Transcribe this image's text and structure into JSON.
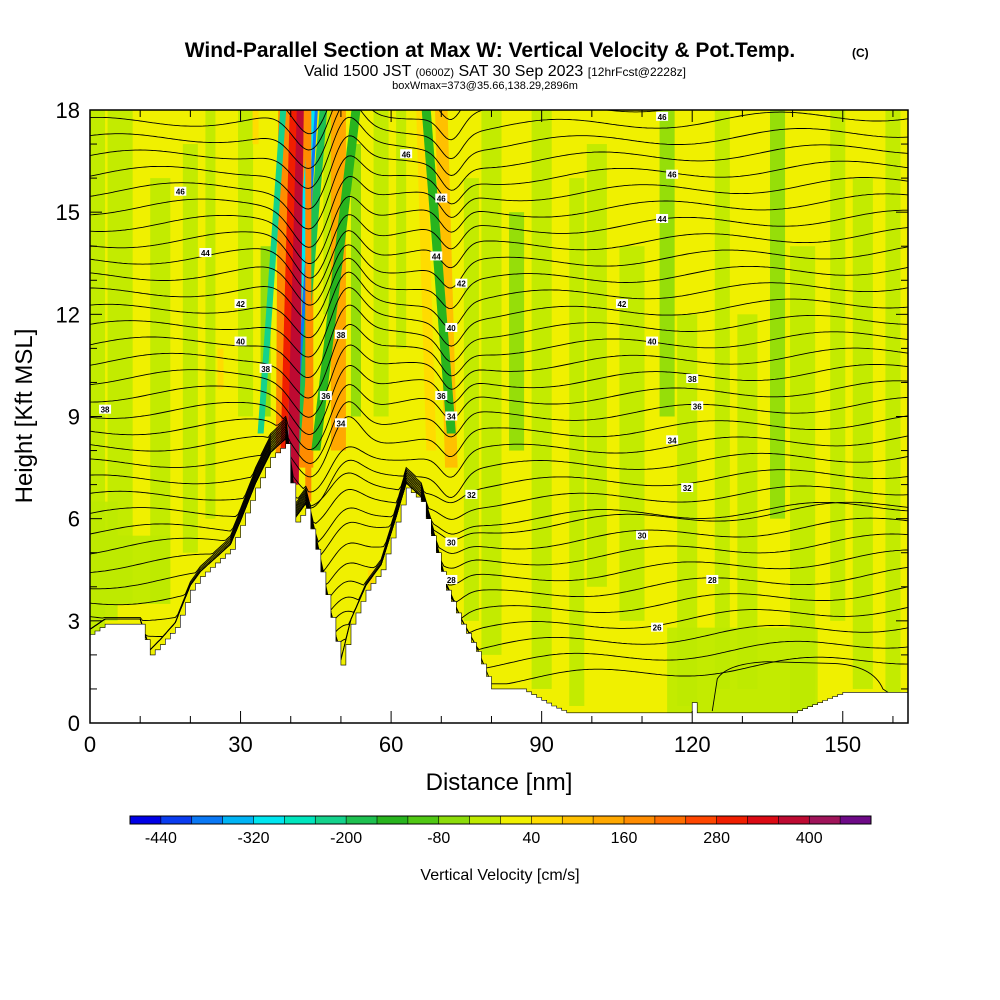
{
  "header": {
    "title_main": "Wind-Parallel Section at Max W: Vertical Velocity & Pot.Temp.",
    "title_copyright": "(C)",
    "sub_valid": "Valid 1500 JST",
    "sub_zulu": "(0600Z)",
    "sub_date": "SAT 30 Sep 2023",
    "sub_fcst": "[12hrFcst@2228z]",
    "sub_box": "boxWmax=373@35.66,138.29,2896m"
  },
  "chart_data": {
    "type": "heatmap",
    "title": "Wind-Parallel Section at Max W: Vertical Velocity & Pot.Temp.",
    "xlabel": "Distance [nm]",
    "ylabel": "Height [Kft MSL]",
    "xlim": [
      0,
      163
    ],
    "ylim": [
      0,
      18
    ],
    "x_ticks": [
      0,
      30,
      60,
      90,
      120,
      150
    ],
    "y_ticks": [
      0,
      3,
      6,
      9,
      12,
      15,
      18
    ],
    "grid": false,
    "colorbar": {
      "label": "Vertical Velocity [cm/s]",
      "tick_labels": [
        "-440",
        "-320",
        "-200",
        "-80",
        "40",
        "160",
        "280",
        "400"
      ],
      "tick_values": [
        -440,
        -320,
        -200,
        -80,
        40,
        160,
        280,
        400
      ],
      "range": [
        -480,
        480
      ],
      "colors": [
        "#0000e6",
        "#0a3cf0",
        "#0a78f5",
        "#00b4f5",
        "#00e6f0",
        "#00e6be",
        "#14d28c",
        "#1ec050",
        "#28b41e",
        "#50c814",
        "#8cdc0a",
        "#beea00",
        "#f0f000",
        "#ffdc00",
        "#ffc000",
        "#ffa800",
        "#ff8c00",
        "#ff6e00",
        "#ff4600",
        "#f01e00",
        "#dc0a14",
        "#be0a32",
        "#a0145a",
        "#6e0a87"
      ]
    },
    "terrain": {
      "x": [
        0,
        3,
        10,
        12,
        14,
        17,
        20,
        22,
        25,
        28,
        30,
        33,
        36,
        39,
        41,
        43,
        45,
        48,
        50,
        52,
        55,
        58,
        61,
        63,
        66,
        69,
        71,
        74,
        77,
        80,
        86,
        92,
        95,
        100,
        110,
        119,
        120,
        121,
        130,
        140,
        145,
        150,
        155,
        160,
        163
      ],
      "y": [
        2.6,
        2.9,
        2.9,
        2.0,
        2.3,
        2.8,
        3.9,
        4.3,
        4.7,
        5.1,
        5.8,
        6.9,
        7.8,
        8.2,
        5.9,
        6.3,
        5.1,
        3.1,
        1.7,
        2.9,
        3.9,
        4.5,
        5.9,
        6.9,
        6.5,
        5.0,
        3.9,
        2.9,
        2.1,
        1.0,
        1.0,
        0.5,
        0.3,
        0.3,
        0.3,
        0.3,
        0.6,
        0.3,
        0.3,
        0.3,
        0.6,
        0.9,
        0.9,
        0.9,
        0.9
      ]
    },
    "theta_contours": {
      "levels": [
        26,
        28,
        30,
        32,
        34,
        36,
        38,
        40,
        42,
        44,
        46
      ],
      "labels": [
        {
          "text": "46",
          "x": 18,
          "y": 15.6
        },
        {
          "text": "46",
          "x": 63,
          "y": 16.7
        },
        {
          "text": "46",
          "x": 114,
          "y": 17.8
        },
        {
          "text": "46",
          "x": 116,
          "y": 16.1
        },
        {
          "text": "46",
          "x": 70,
          "y": 15.4
        },
        {
          "text": "44",
          "x": 23,
          "y": 13.8
        },
        {
          "text": "44",
          "x": 69,
          "y": 13.7
        },
        {
          "text": "44",
          "x": 114,
          "y": 14.8
        },
        {
          "text": "42",
          "x": 30,
          "y": 12.3
        },
        {
          "text": "42",
          "x": 74,
          "y": 12.9
        },
        {
          "text": "42",
          "x": 106,
          "y": 12.3
        },
        {
          "text": "40",
          "x": 30,
          "y": 11.2
        },
        {
          "text": "40",
          "x": 72,
          "y": 11.6
        },
        {
          "text": "40",
          "x": 112,
          "y": 11.2
        },
        {
          "text": "38",
          "x": 35,
          "y": 10.4
        },
        {
          "text": "38",
          "x": 50,
          "y": 11.4
        },
        {
          "text": "38",
          "x": 120,
          "y": 10.1
        },
        {
          "text": "38",
          "x": 3,
          "y": 9.2
        },
        {
          "text": "36",
          "x": 47,
          "y": 9.6
        },
        {
          "text": "36",
          "x": 70,
          "y": 9.6
        },
        {
          "text": "36",
          "x": 121,
          "y": 9.3
        },
        {
          "text": "34",
          "x": 50,
          "y": 8.8
        },
        {
          "text": "34",
          "x": 72,
          "y": 9.0
        },
        {
          "text": "34",
          "x": 116,
          "y": 8.3
        },
        {
          "text": "32",
          "x": 76,
          "y": 6.7
        },
        {
          "text": "32",
          "x": 119,
          "y": 6.9
        },
        {
          "text": "30",
          "x": 72,
          "y": 5.3
        },
        {
          "text": "30",
          "x": 110,
          "y": 5.5
        },
        {
          "text": "28",
          "x": 72,
          "y": 4.2
        },
        {
          "text": "28",
          "x": 124,
          "y": 4.2
        },
        {
          "text": "26",
          "x": 113,
          "y": 2.8
        }
      ]
    },
    "updraft_bands": [
      {
        "x_bottom": 40.5,
        "x_top": 41.5,
        "y_bottom": 7.0,
        "color": "#be0a32",
        "width": 2.2,
        "peak": 400
      },
      {
        "x_bottom": 38.5,
        "x_top": 40.5,
        "y_bottom": 7.0,
        "color": "#f01e00",
        "width": 1.4,
        "peak": 280
      },
      {
        "x_bottom": 43.5,
        "x_top": 43.5,
        "y_bottom": 6.5,
        "color": "#ff8c00",
        "width": 1.2,
        "peak": 160
      },
      {
        "x_bottom": 49.5,
        "x_top": 49.5,
        "y_bottom": 8.0,
        "color": "#ffa800",
        "width": 3.0,
        "peak": 100
      },
      {
        "x_bottom": 72,
        "x_top": 70,
        "y_bottom": 7.5,
        "color": "#ffc000",
        "width": 2.5,
        "peak": 80
      },
      {
        "x_bottom": 68,
        "x_top": 66,
        "y_bottom": 8.0,
        "color": "#ffdc00",
        "width": 2.0,
        "peak": 60
      }
    ],
    "downdraft_bands": [
      {
        "x_bottom": 38.5,
        "x_top": 44.5,
        "y_bottom": 7.0,
        "color": "#00e6f0",
        "width": 1.6,
        "peak": -280
      },
      {
        "x_bottom": 40.5,
        "x_top": 46.5,
        "y_bottom": 7.0,
        "color": "#1ec050",
        "width": 1.5,
        "peak": -140
      },
      {
        "x_bottom": 34,
        "x_top": 38.5,
        "y_bottom": 8.5,
        "color": "#14d28c",
        "width": 1.2,
        "peak": -160
      },
      {
        "x_bottom": 45,
        "x_top": 53,
        "y_bottom": 8.0,
        "color": "#28b41e",
        "width": 1.8,
        "peak": -100
      },
      {
        "x_bottom": 72,
        "x_top": 67,
        "y_bottom": 8.5,
        "color": "#28b41e",
        "width": 1.8,
        "peak": -90
      }
    ]
  }
}
